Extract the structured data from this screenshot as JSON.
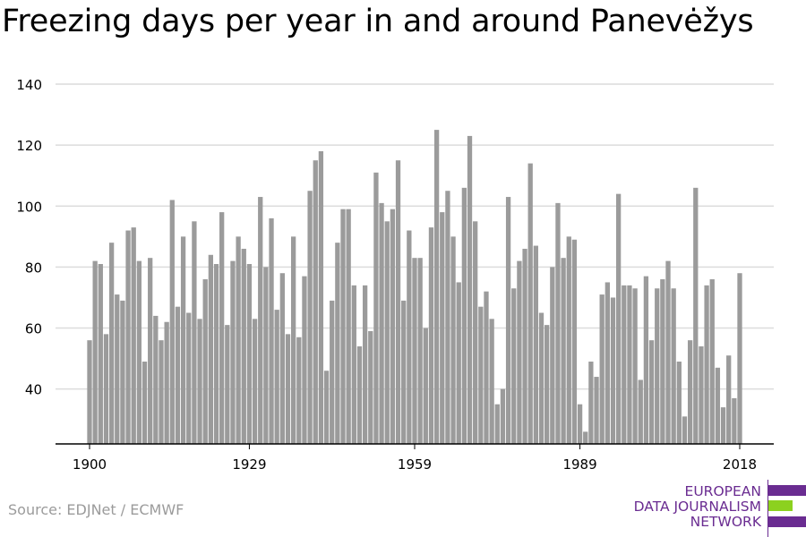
{
  "title": "Freezing days per year in and around Panevėžys",
  "source": "Source: EDJNet / ECMWF",
  "logo": {
    "line1": "EUROPEAN",
    "line2": "DATA JOURNALISM",
    "line3": "NETWORK",
    "color_purple": "#6a2c91",
    "color_green": "#8cd11f"
  },
  "chart_data": {
    "type": "bar",
    "title": "Freezing days per year in and around Panevėžys",
    "xlabel": "",
    "ylabel": "",
    "x_start": 1900,
    "x_end": 2018,
    "x_ticks": [
      1900,
      1929,
      1959,
      1989,
      2018
    ],
    "y_ticks": [
      40,
      60,
      80,
      100,
      120,
      140
    ],
    "ylim": [
      22,
      140
    ],
    "grid": true,
    "bar_color": "#9b9b9b",
    "values": [
      56,
      82,
      81,
      58,
      88,
      71,
      69,
      92,
      93,
      82,
      49,
      83,
      64,
      56,
      62,
      102,
      67,
      90,
      65,
      95,
      63,
      76,
      84,
      81,
      98,
      61,
      82,
      90,
      86,
      81,
      63,
      103,
      80,
      96,
      66,
      78,
      58,
      90,
      57,
      77,
      105,
      115,
      118,
      46,
      69,
      88,
      99,
      99,
      74,
      54,
      74,
      59,
      111,
      101,
      95,
      99,
      115,
      69,
      92,
      83,
      83,
      60,
      93,
      125,
      98,
      105,
      90,
      75,
      106,
      123,
      95,
      67,
      72,
      63,
      35,
      40,
      103,
      73,
      82,
      86,
      114,
      87,
      65,
      61,
      80,
      101,
      83,
      90,
      89,
      35,
      26,
      49,
      44,
      71,
      75,
      70,
      104,
      74,
      74,
      73,
      43,
      77,
      56,
      73,
      76,
      82,
      73,
      49,
      31,
      56,
      106,
      54,
      74,
      76,
      47,
      34,
      51,
      37,
      78
    ]
  }
}
